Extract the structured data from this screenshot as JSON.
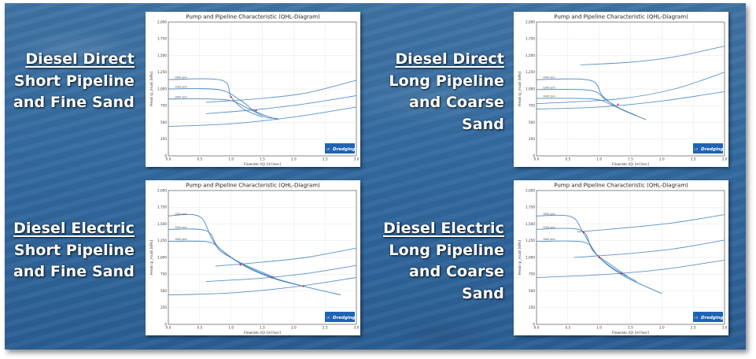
{
  "slide": {
    "captions": [
      {
        "key": "diesel-direct-short",
        "lines": [
          "Diesel Direct",
          "Short Pipeline",
          "and Fine Sand"
        ]
      },
      {
        "key": "diesel-direct-long",
        "lines": [
          "Diesel Direct",
          "Long Pipeline",
          "and Coarse",
          "Sand"
        ]
      },
      {
        "key": "diesel-electric-short",
        "lines": [
          "Diesel Electric",
          "Short Pipeline",
          "and Fine Sand"
        ]
      },
      {
        "key": "diesel-electric-long",
        "lines": [
          "Diesel Electric",
          "Long Pipeline",
          "and Coarse",
          "Sand"
        ]
      }
    ]
  },
  "chart_data": [
    {
      "key": "diesel-direct-short",
      "type": "line",
      "title": "Pump and Pipeline Characteristic (QHL-Diagram)",
      "xlabel": "Flowrate (Q) [m³/sec]",
      "ylabel": "Head (p_mud) [kPa]",
      "xlim": [
        0,
        3.0
      ],
      "ylim": [
        0,
        2000
      ],
      "xticks": [
        "0.0",
        "0.5",
        "1.0",
        "1.5",
        "2.0",
        "2.5",
        "3.0"
      ],
      "yticks": [
        "0",
        "250",
        "500",
        "750",
        "1,000",
        "1,250",
        "1,500",
        "1,750",
        "2,000"
      ],
      "grid": true,
      "logo": "Dredging",
      "pump_curves": [
        {
          "rpm_label": "1000 rpm",
          "points": [
            [
              0,
              1140
            ],
            [
              0.85,
              1130
            ],
            [
              1.0,
              880
            ],
            [
              1.2,
              700
            ],
            [
              1.5,
              580
            ]
          ]
        },
        {
          "rpm_label": "1200 rpm",
          "points": [
            [
              0,
              1000
            ],
            [
              0.8,
              990
            ],
            [
              1.15,
              830
            ],
            [
              1.4,
              660
            ],
            [
              1.75,
              540
            ]
          ]
        },
        {
          "rpm_label": "1000 rpm",
          "points": [
            [
              0,
              850
            ],
            [
              0.9,
              840
            ],
            [
              1.25,
              720
            ],
            [
              1.55,
              580
            ],
            [
              1.75,
              560
            ]
          ]
        }
      ],
      "pipeline_curves": [
        {
          "points": [
            [
              0,
              440
            ],
            [
              1,
              480
            ],
            [
              2,
              580
            ],
            [
              3,
              730
            ]
          ]
        },
        {
          "points": [
            [
              0.6,
              630
            ],
            [
              1.5,
              700
            ],
            [
              2.2,
              780
            ],
            [
              3.0,
              900
            ]
          ]
        },
        {
          "points": [
            [
              0.6,
              800
            ],
            [
              1.5,
              860
            ],
            [
              2.2,
              940
            ],
            [
              3.0,
              1130
            ]
          ]
        }
      ],
      "operating_points": [
        [
          1.0,
          880
        ],
        [
          1.4,
          680
        ]
      ]
    },
    {
      "key": "diesel-direct-long",
      "type": "line",
      "title": "Pump and Pipeline Characteristic (QHL-Diagram)",
      "xlabel": "Flowrate (Q) [m³/sec]",
      "ylabel": "Head (p_mud) [kPa]",
      "xlim": [
        0,
        3.0
      ],
      "ylim": [
        0,
        2000
      ],
      "xticks": [
        "0.0",
        "0.5",
        "1.0",
        "1.5",
        "2.0",
        "2.5",
        "3.0"
      ],
      "yticks": [
        "0",
        "250",
        "500",
        "750",
        "1,000",
        "1,250",
        "1,500",
        "1,750",
        "2,000"
      ],
      "grid": true,
      "logo": "Dredging",
      "pump_curves": [
        {
          "rpm_label": "1000 rpm",
          "points": [
            [
              0,
              1140
            ],
            [
              0.85,
              1130
            ],
            [
              1.05,
              900
            ],
            [
              1.3,
              720
            ],
            [
              1.75,
              540
            ]
          ]
        },
        {
          "rpm_label": "1200 rpm",
          "points": [
            [
              0,
              990
            ],
            [
              0.85,
              980
            ],
            [
              1.1,
              840
            ],
            [
              1.35,
              700
            ],
            [
              1.6,
              600
            ]
          ]
        },
        {
          "rpm_label": "1000 rpm",
          "points": [
            [
              0,
              860
            ],
            [
              0.9,
              850
            ],
            [
              1.2,
              760
            ],
            [
              1.4,
              680
            ],
            [
              1.55,
              620
            ]
          ]
        }
      ],
      "pipeline_curves": [
        {
          "points": [
            [
              0,
              700
            ],
            [
              1,
              730
            ],
            [
              2,
              820
            ],
            [
              3,
              960
            ]
          ]
        },
        {
          "points": [
            [
              0,
              780
            ],
            [
              1.3,
              850
            ],
            [
              2.2,
              1000
            ],
            [
              3,
              1250
            ]
          ]
        },
        {
          "points": [
            [
              0.7,
              1360
            ],
            [
              1.5,
              1400
            ],
            [
              2.2,
              1480
            ],
            [
              3,
              1640
            ]
          ]
        }
      ],
      "operating_points": [
        [
          1.3,
          770
        ]
      ]
    },
    {
      "key": "diesel-electric-short",
      "type": "line",
      "title": "Pump and Pipeline Characteristic (QHL-Diagram)",
      "xlabel": "Flowrate (Q) [m³/sec]",
      "ylabel": "Head (p_mud) [kPa]",
      "xlim": [
        0,
        3.0
      ],
      "ylim": [
        0,
        2000
      ],
      "xticks": [
        "0.0",
        "0.5",
        "1.0",
        "1.5",
        "2.0",
        "2.5",
        "3.0"
      ],
      "yticks": [
        "0",
        "250",
        "500",
        "750",
        "1,000",
        "1,250",
        "1,500",
        "1,750",
        "2,000"
      ],
      "grid": true,
      "logo": "Dredging",
      "pump_curves": [
        {
          "rpm_label": "1000 rpm",
          "points": [
            [
              0,
              1620
            ],
            [
              0.5,
              1610
            ],
            [
              0.75,
              1200
            ],
            [
              1.2,
              880
            ],
            [
              1.7,
              680
            ],
            [
              2.2,
              560
            ],
            [
              2.75,
              440
            ]
          ]
        },
        {
          "rpm_label": "1200 rpm",
          "points": [
            [
              0,
              1420
            ],
            [
              0.6,
              1400
            ],
            [
              0.8,
              1150
            ],
            [
              1.2,
              890
            ],
            [
              1.7,
              690
            ],
            [
              2.2,
              560
            ]
          ]
        },
        {
          "rpm_label": "1000 rpm",
          "points": [
            [
              0,
              1240
            ],
            [
              0.65,
              1230
            ],
            [
              0.85,
              1080
            ],
            [
              1.2,
              900
            ],
            [
              1.7,
              700
            ]
          ]
        }
      ],
      "pipeline_curves": [
        {
          "points": [
            [
              0,
              440
            ],
            [
              1,
              470
            ],
            [
              2,
              560
            ],
            [
              3,
              700
            ]
          ]
        },
        {
          "points": [
            [
              0.6,
              640
            ],
            [
              1.5,
              690
            ],
            [
              2.2,
              760
            ],
            [
              3,
              880
            ]
          ]
        },
        {
          "points": [
            [
              0.75,
              870
            ],
            [
              1.5,
              930
            ],
            [
              2.2,
              1000
            ],
            [
              3,
              1140
            ]
          ]
        }
      ],
      "operating_points": [
        [
          1.15,
          890
        ],
        [
          1.65,
          700
        ],
        [
          2.15,
          570
        ]
      ]
    },
    {
      "key": "diesel-electric-long",
      "type": "line",
      "title": "Pump and Pipeline Characteristic (QHL-Diagram)",
      "xlabel": "Flowrate (Q) [m³/sec]",
      "ylabel": "Head (p_mud) [kPa]",
      "xlim": [
        0,
        3.0
      ],
      "ylim": [
        0,
        2000
      ],
      "xticks": [
        "0.0",
        "0.5",
        "1.0",
        "1.5",
        "2.0",
        "2.5",
        "3.0"
      ],
      "yticks": [
        "0",
        "250",
        "500",
        "750",
        "1,000",
        "1,250",
        "1,500",
        "1,750",
        "2,000"
      ],
      "grid": true,
      "logo": "Dredging",
      "pump_curves": [
        {
          "rpm_label": "1000 rpm",
          "points": [
            [
              0,
              1620
            ],
            [
              0.55,
              1610
            ],
            [
              0.75,
              1360
            ],
            [
              1.0,
              1000
            ],
            [
              1.4,
              720
            ],
            [
              2.0,
              460
            ]
          ]
        },
        {
          "rpm_label": "1200 rpm",
          "points": [
            [
              0,
              1420
            ],
            [
              0.7,
              1410
            ],
            [
              0.9,
              1100
            ],
            [
              1.2,
              850
            ],
            [
              1.6,
              640
            ]
          ]
        },
        {
          "rpm_label": "1000 rpm",
          "points": [
            [
              0,
              1240
            ],
            [
              0.75,
              1230
            ],
            [
              0.95,
              1050
            ],
            [
              1.2,
              880
            ],
            [
              1.45,
              720
            ]
          ]
        }
      ],
      "pipeline_curves": [
        {
          "points": [
            [
              0,
              700
            ],
            [
              1,
              740
            ],
            [
              2,
              820
            ],
            [
              3,
              960
            ]
          ]
        },
        {
          "points": [
            [
              0.6,
              1000
            ],
            [
              1.5,
              1060
            ],
            [
              2.2,
              1130
            ],
            [
              3,
              1260
            ]
          ]
        },
        {
          "points": [
            [
              0.65,
              1380
            ],
            [
              1.5,
              1450
            ],
            [
              2.2,
              1520
            ],
            [
              3,
              1640
            ]
          ]
        }
      ],
      "operating_points": [
        [
          0.75,
          1380
        ],
        [
          1.0,
          1000
        ],
        [
          1.35,
          760
        ]
      ]
    }
  ]
}
